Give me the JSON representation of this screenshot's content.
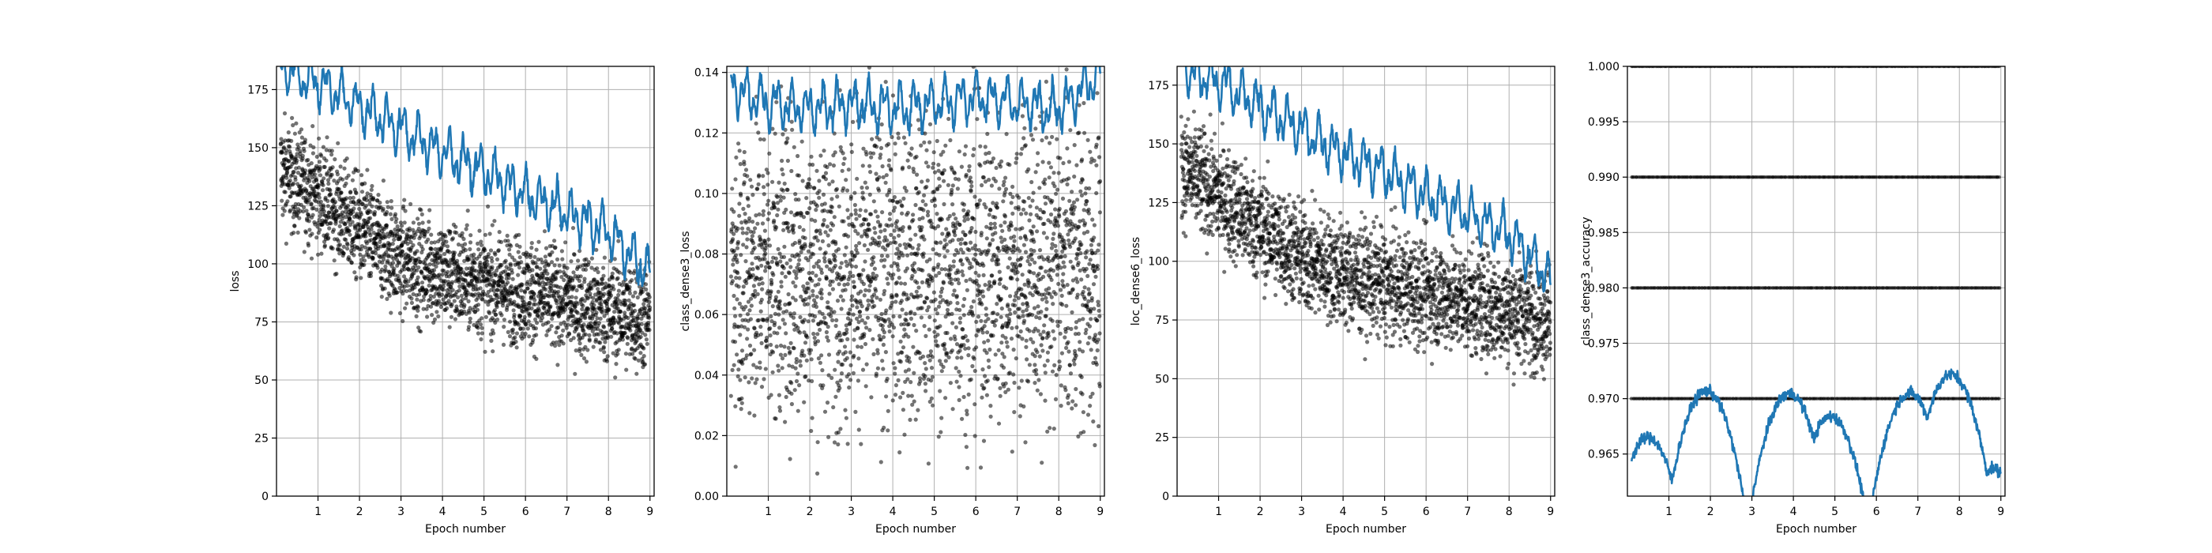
{
  "chart_data": [
    {
      "type": "scatter",
      "xlabel": "Epoch number",
      "ylabel": "loss",
      "x_ticks": [
        1,
        2,
        3,
        4,
        5,
        6,
        7,
        8,
        9
      ],
      "y_ticks": [
        "0",
        "25",
        "50",
        "75",
        "100",
        "125",
        "150",
        "175"
      ],
      "y_tick_values": [
        0,
        25,
        50,
        75,
        100,
        125,
        150,
        175
      ],
      "xlim": [
        0,
        9.1
      ],
      "ylim": [
        0,
        185
      ],
      "grid": true,
      "series": [
        {
          "kind": "scatter",
          "color": "#000000",
          "description_points": "per-batch values, dense cloud decreasing from ~185 to ~75 with spread",
          "trend": [
            [
              0.1,
              140
            ],
            [
              1,
              130
            ],
            [
              2,
              115
            ],
            [
              3,
              102
            ],
            [
              4,
              96
            ],
            [
              5,
              92
            ],
            [
              6,
              88
            ],
            [
              7,
              84
            ],
            [
              8,
              80
            ],
            [
              9,
              76
            ]
          ],
          "spread": 30
        },
        {
          "kind": "line",
          "color": "#1f77b4",
          "trend": [
            [
              0.1,
              185
            ],
            [
              1,
              178
            ],
            [
              2,
              168
            ],
            [
              3,
              158
            ],
            [
              4,
              148
            ],
            [
              5,
              140
            ],
            [
              6,
              130
            ],
            [
              7,
              122
            ],
            [
              8,
              114
            ],
            [
              9,
              95
            ]
          ]
        }
      ]
    },
    {
      "type": "scatter",
      "xlabel": "Epoch number",
      "ylabel": "class_dense3_loss",
      "x_ticks": [
        1,
        2,
        3,
        4,
        5,
        6,
        7,
        8,
        9
      ],
      "y_ticks": [
        "0.00",
        "0.02",
        "0.04",
        "0.06",
        "0.08",
        "0.10",
        "0.12",
        "0.14"
      ],
      "y_tick_values": [
        0,
        0.02,
        0.04,
        0.06,
        0.08,
        0.1,
        0.12,
        0.14
      ],
      "xlim": [
        0,
        9.1
      ],
      "ylim": [
        0,
        0.142
      ],
      "grid": true,
      "series": [
        {
          "kind": "scatter",
          "color": "#000000",
          "trend": [
            [
              0.1,
              0.075
            ],
            [
              9,
              0.075
            ]
          ],
          "spread": 0.065
        },
        {
          "kind": "line",
          "color": "#1f77b4",
          "trend": [
            [
              0.1,
              0.135
            ],
            [
              1,
              0.13
            ],
            [
              2,
              0.128
            ],
            [
              3,
              0.13
            ],
            [
              4,
              0.128
            ],
            [
              5,
              0.13
            ],
            [
              6,
              0.132
            ],
            [
              7,
              0.13
            ],
            [
              8,
              0.128
            ],
            [
              9,
              0.14
            ]
          ]
        }
      ]
    },
    {
      "type": "scatter",
      "xlabel": "Epoch number",
      "ylabel": "loc_dense6_loss",
      "x_ticks": [
        1,
        2,
        3,
        4,
        5,
        6,
        7,
        8,
        9
      ],
      "y_ticks": [
        "0",
        "25",
        "50",
        "75",
        "100",
        "125",
        "150",
        "175"
      ],
      "y_tick_values": [
        0,
        25,
        50,
        75,
        100,
        125,
        150,
        175
      ],
      "xlim": [
        0,
        9.1
      ],
      "ylim": [
        0,
        183
      ],
      "grid": true,
      "series": [
        {
          "kind": "scatter",
          "color": "#000000",
          "trend": [
            [
              0.1,
              140
            ],
            [
              1,
              128
            ],
            [
              2,
              114
            ],
            [
              3,
              102
            ],
            [
              4,
              95
            ],
            [
              5,
              90
            ],
            [
              6,
              87
            ],
            [
              7,
              83
            ],
            [
              8,
              79
            ],
            [
              9,
              76
            ]
          ],
          "spread": 30
        },
        {
          "kind": "line",
          "color": "#1f77b4",
          "trend": [
            [
              0.1,
              183
            ],
            [
              1,
              176
            ],
            [
              2,
              166
            ],
            [
              3,
              156
            ],
            [
              4,
              146
            ],
            [
              5,
              138
            ],
            [
              6,
              128
            ],
            [
              7,
              120
            ],
            [
              8,
              112
            ],
            [
              9,
              92
            ]
          ]
        }
      ]
    },
    {
      "type": "scatter",
      "xlabel": "Epoch number",
      "ylabel": "class_dense3_accuracy",
      "x_ticks": [
        1,
        2,
        3,
        4,
        5,
        6,
        7,
        8,
        9
      ],
      "y_ticks": [
        "0.965",
        "0.970",
        "0.975",
        "0.980",
        "0.985",
        "0.990",
        "0.995",
        "1.000"
      ],
      "y_tick_values": [
        0.965,
        0.97,
        0.975,
        0.98,
        0.985,
        0.99,
        0.995,
        1.0
      ],
      "xlim": [
        0,
        9.1
      ],
      "ylim": [
        0.9612,
        1.0
      ],
      "grid": true,
      "series": [
        {
          "kind": "scatter_levels",
          "color": "#000000",
          "levels": [
            0.97,
            0.98,
            0.99,
            1.0
          ]
        },
        {
          "kind": "line",
          "color": "#1f77b4",
          "peaks": [
            [
              0.5,
              0.9665
            ],
            [
              1.9,
              0.9707
            ],
            [
              3.9,
              0.9705
            ],
            [
              4.9,
              0.9684
            ],
            [
              6.8,
              0.9705
            ],
            [
              7.8,
              0.9722
            ],
            [
              8.8,
              0.9637
            ]
          ]
        }
      ]
    }
  ]
}
